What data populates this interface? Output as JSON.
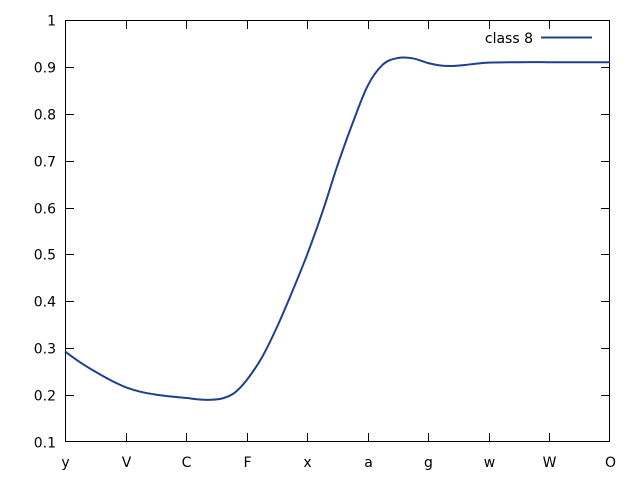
{
  "chart_data": {
    "type": "line",
    "categories": [
      "y",
      "V",
      "C",
      "F",
      "x",
      "a",
      "g",
      "w",
      "W",
      "O"
    ],
    "ylim": [
      0.1,
      1
    ],
    "yticks": [
      "0.1",
      "0.2",
      "0.3",
      "0.4",
      "0.5",
      "0.6",
      "0.7",
      "0.8",
      "0.9",
      "1"
    ],
    "grid": false,
    "legend": {
      "placement": "top-right"
    },
    "series": [
      {
        "name": "class 8",
        "color": "#1f3f8f",
        "x": [
          0,
          0.25,
          0.5,
          0.75,
          1,
          1.25,
          1.5,
          1.75,
          2,
          2.2,
          2.4,
          2.6,
          2.8,
          3,
          3.25,
          3.5,
          3.75,
          4,
          4.25,
          4.5,
          4.75,
          5,
          5.25,
          5.5,
          5.75,
          6,
          6.2,
          6.4,
          6.6,
          6.8,
          7,
          7.5,
          8,
          8.5,
          9
        ],
        "y": [
          0.293,
          0.27,
          0.25,
          0.232,
          0.217,
          0.207,
          0.201,
          0.197,
          0.194,
          0.191,
          0.19,
          0.193,
          0.205,
          0.232,
          0.28,
          0.345,
          0.42,
          0.5,
          0.59,
          0.69,
          0.78,
          0.86,
          0.905,
          0.919,
          0.918,
          0.908,
          0.903,
          0.902,
          0.904,
          0.907,
          0.909,
          0.91,
          0.91,
          0.91,
          0.91
        ]
      }
    ]
  }
}
